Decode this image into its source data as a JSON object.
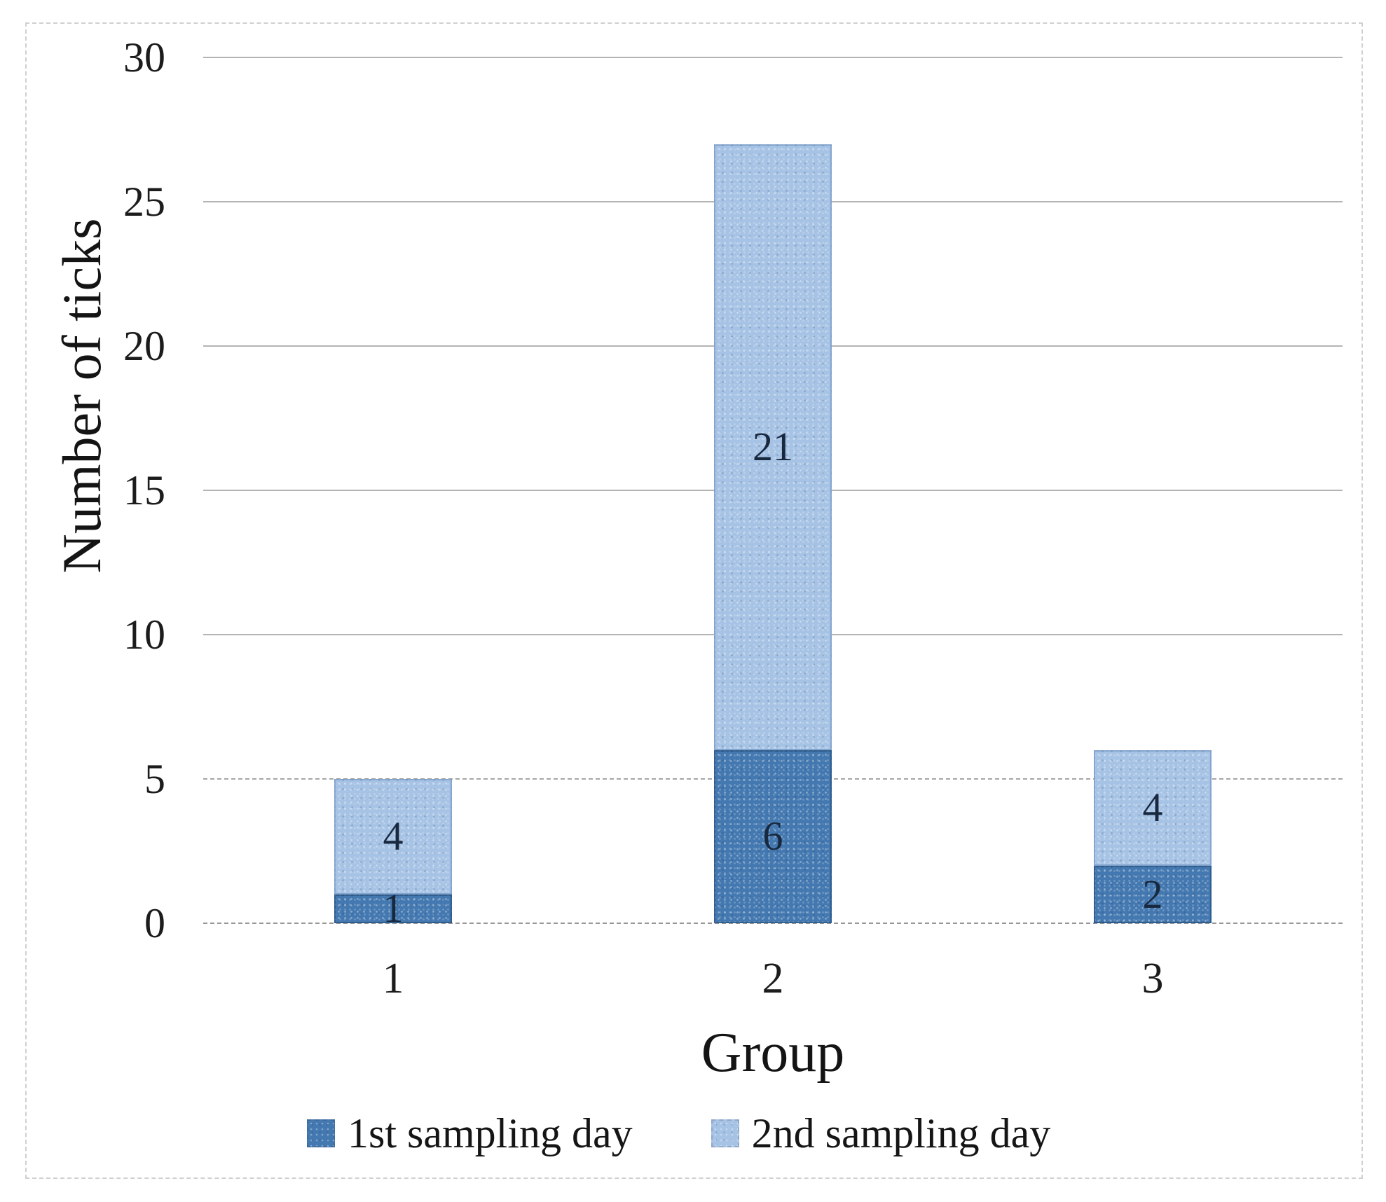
{
  "chart_data": {
    "type": "bar",
    "stacked": true,
    "title": "",
    "xlabel": "Group",
    "ylabel": "Number of ticks",
    "categories": [
      "1",
      "2",
      "3"
    ],
    "series": [
      {
        "name": "1st sampling day",
        "values": [
          1,
          6,
          2
        ],
        "color": "#4478b0"
      },
      {
        "name": "2nd sampling day",
        "values": [
          4,
          21,
          4
        ],
        "color": "#a6c3e5"
      }
    ],
    "ylim": [
      0,
      30
    ],
    "y_ticks": [
      0,
      5,
      10,
      15,
      20,
      25,
      30
    ],
    "grid": true,
    "legend_position": "bottom",
    "data_labels": true,
    "colors": {
      "gridline": "#b4b4b4",
      "label_text": "#18293f",
      "axis_text": "#1c1c1c",
      "frame": "#d0d0d0"
    }
  }
}
